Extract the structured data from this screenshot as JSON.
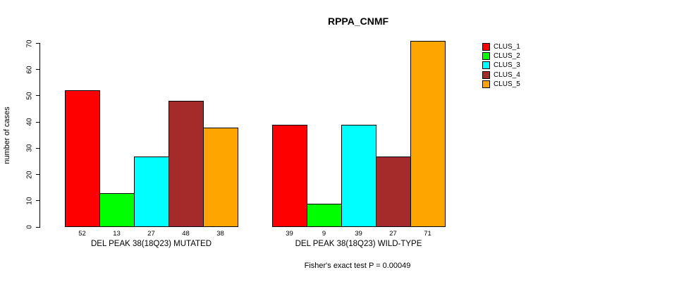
{
  "title": "RPPA_CNMF",
  "footer": "Fisher's exact test P = 0.00049",
  "y_axis": {
    "label": "number of cases",
    "ticks": [
      0,
      10,
      20,
      30,
      40,
      50,
      60,
      70
    ]
  },
  "legend": {
    "position": "top-right",
    "entries": [
      {
        "label": "CLUS_1",
        "color": "#FF0000"
      },
      {
        "label": "CLUS_2",
        "color": "#00FF00"
      },
      {
        "label": "CLUS_3",
        "color": "#00FFFF"
      },
      {
        "label": "CLUS_4",
        "color": "#A52A2A"
      },
      {
        "label": "CLUS_5",
        "color": "#FFA500"
      }
    ]
  },
  "chart_data": {
    "type": "bar",
    "title": "RPPA_CNMF",
    "ylabel": "number of cases",
    "xlabel": "",
    "ylim": [
      0,
      70
    ],
    "yticks": [
      0,
      10,
      20,
      30,
      40,
      50,
      60,
      70
    ],
    "grid": false,
    "legend_position": "top-right",
    "bar_value_labels": true,
    "categories": [
      "DEL PEAK 38(18Q23) MUTATED",
      "DEL PEAK 38(18Q23) WILD-TYPE"
    ],
    "series": [
      {
        "name": "CLUS_1",
        "color": "#FF0000",
        "values": [
          52,
          39
        ]
      },
      {
        "name": "CLUS_2",
        "color": "#00FF00",
        "values": [
          13,
          9
        ]
      },
      {
        "name": "CLUS_3",
        "color": "#00FFFF",
        "values": [
          27,
          39
        ]
      },
      {
        "name": "CLUS_4",
        "color": "#A52A2A",
        "values": [
          48,
          27
        ]
      },
      {
        "name": "CLUS_5",
        "color": "#FFA500",
        "values": [
          38,
          71
        ]
      }
    ],
    "annotation": "Fisher's exact test P = 0.00049"
  }
}
